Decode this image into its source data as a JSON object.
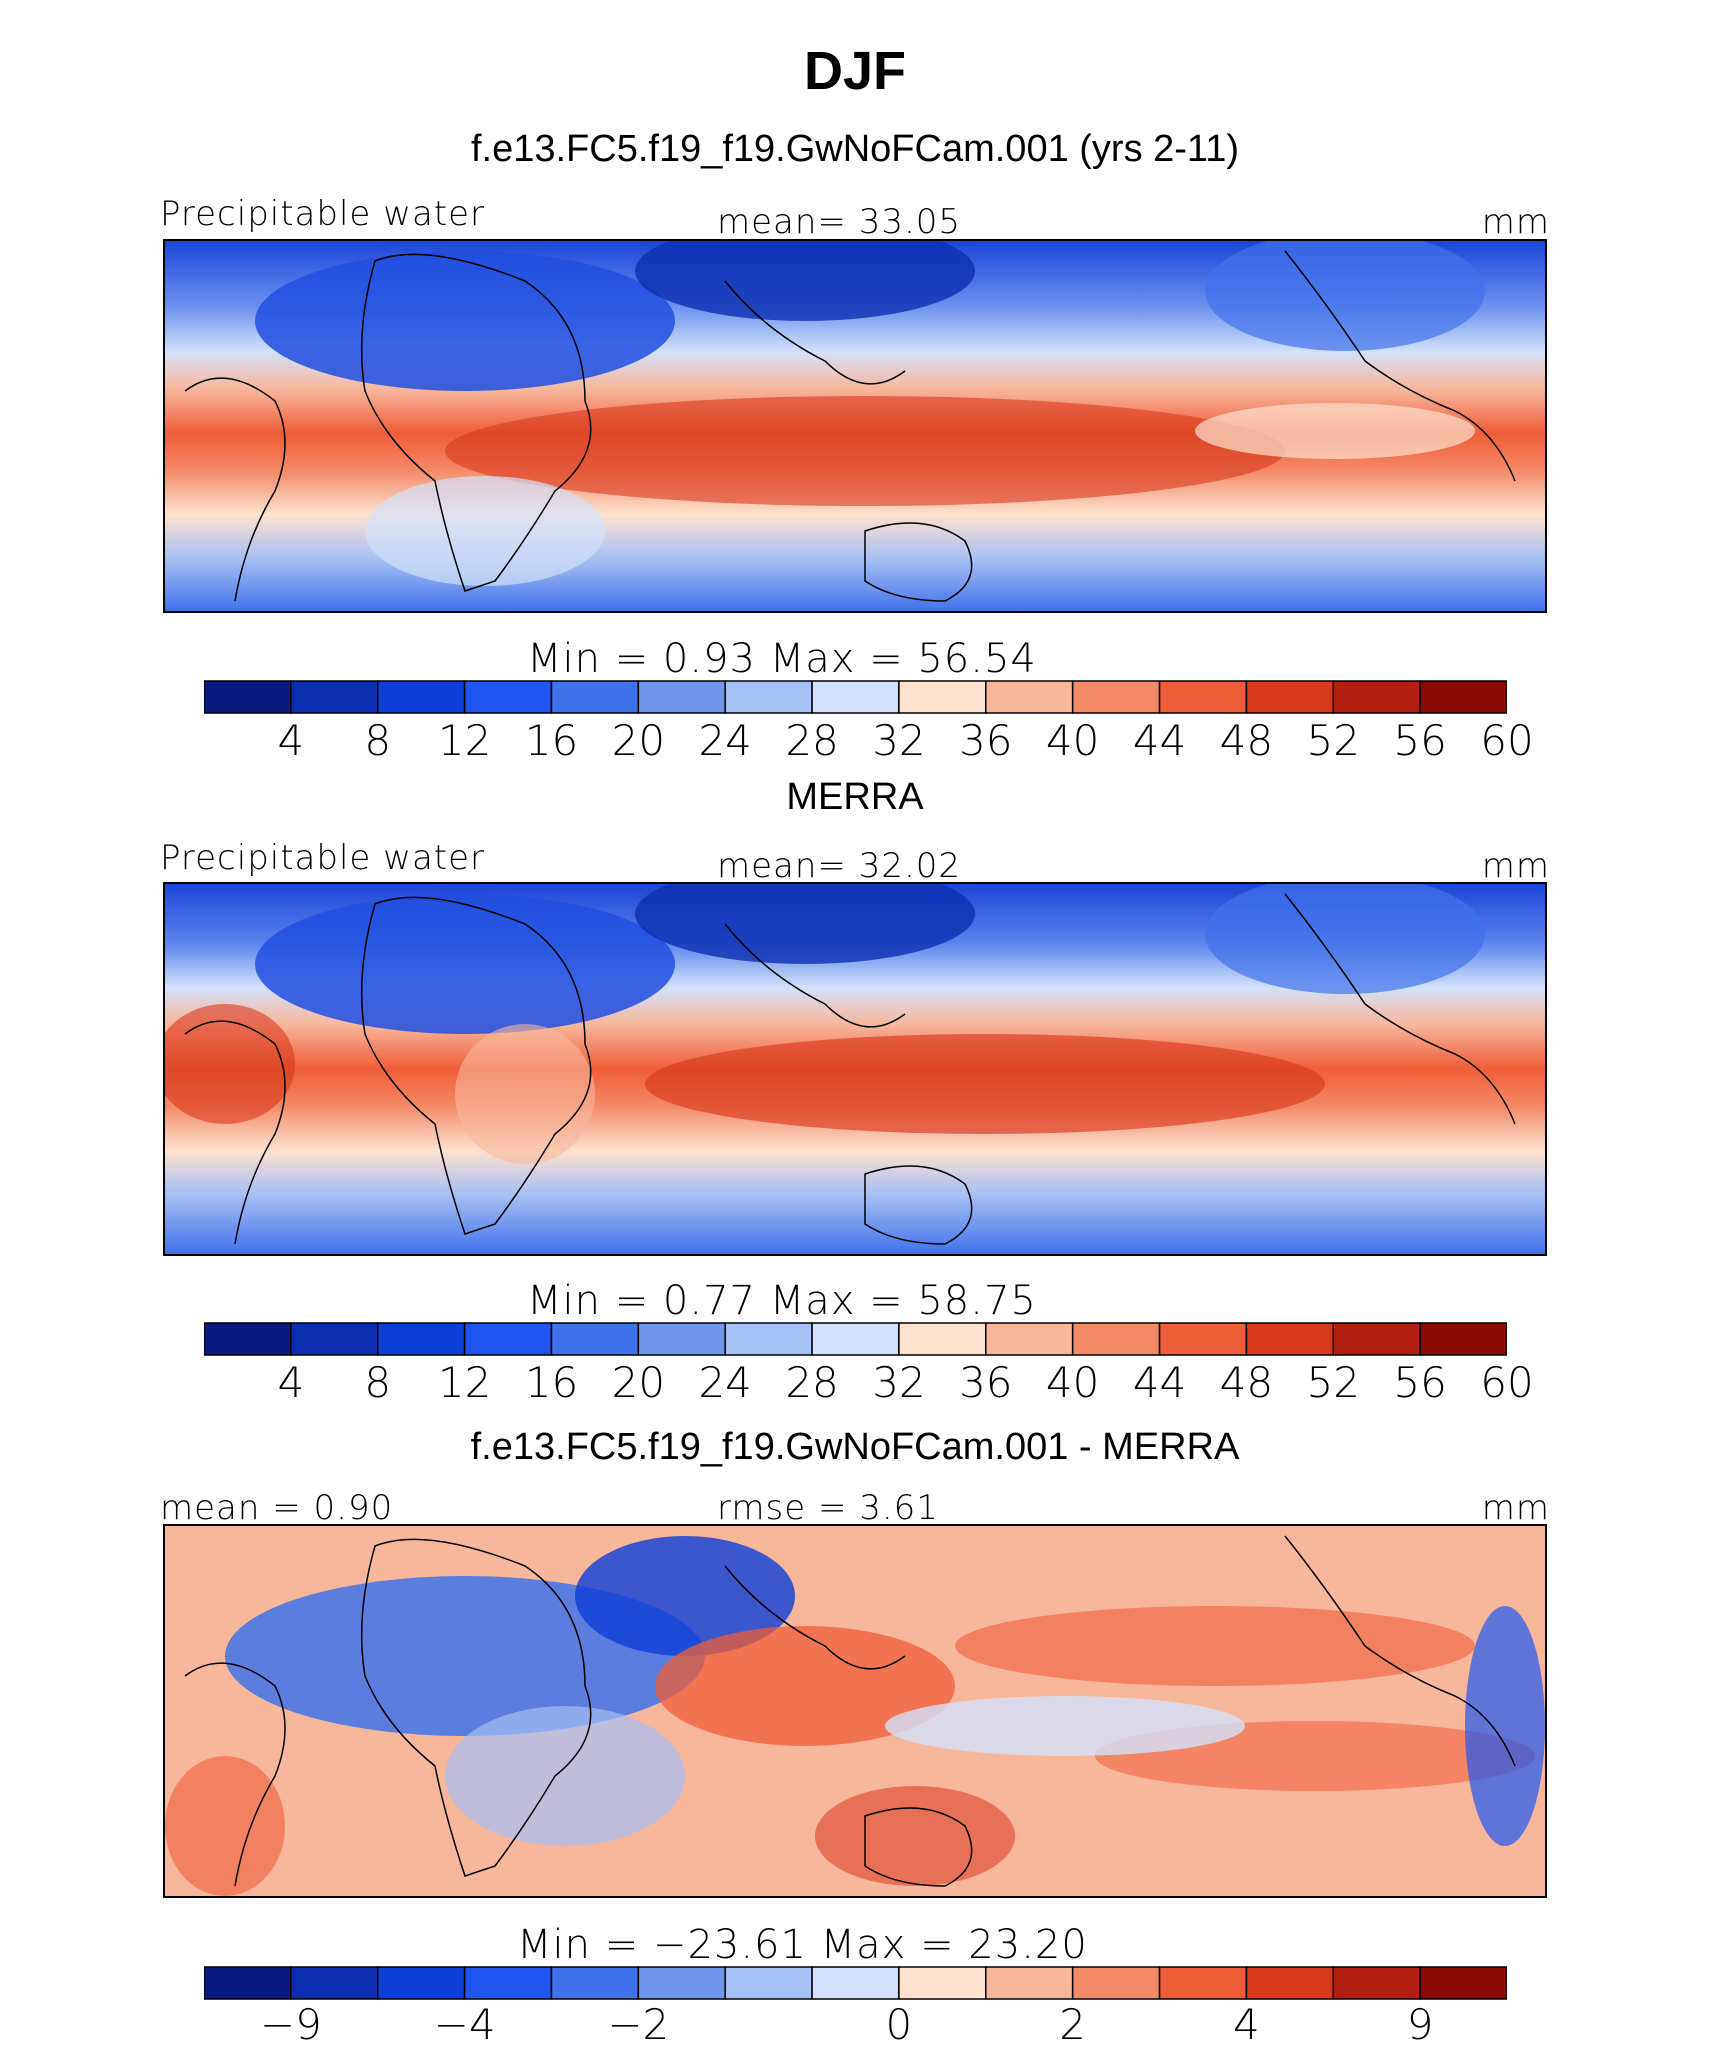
{
  "chart_data": {
    "type": "heatmap",
    "title": "DJF",
    "panels": [
      {
        "id": "model",
        "title": "f.e13.FC5.f19_f19.GwNoFCam.001 (yrs 2-11)",
        "left_label": "Precipitable water",
        "center_label": "mean=   33.05",
        "units": "mm",
        "mean": 33.05,
        "min": 0.93,
        "max": 56.54,
        "minmax_text": "Min  =     0.93  Max  =    56.54",
        "colorbar_ticks": [
          "4",
          "8",
          "12",
          "16",
          "20",
          "24",
          "28",
          "32",
          "36",
          "40",
          "44",
          "48",
          "52",
          "56",
          "60"
        ]
      },
      {
        "id": "obs",
        "title": "MERRA",
        "left_label": "Precipitable water",
        "center_label": "mean=   32.02",
        "units": "mm",
        "mean": 32.02,
        "min": 0.77,
        "max": 58.75,
        "minmax_text": "Min  =     0.77  Max  =    58.75",
        "colorbar_ticks": [
          "4",
          "8",
          "12",
          "16",
          "20",
          "24",
          "28",
          "32",
          "36",
          "40",
          "44",
          "48",
          "52",
          "56",
          "60"
        ]
      },
      {
        "id": "diff",
        "title": "f.e13.FC5.f19_f19.GwNoFCam.001 - MERRA",
        "left_label": "mean =    0.90",
        "center_label": "rmse =     3.61",
        "units": "mm",
        "mean": 0.9,
        "rmse": 3.61,
        "min": -23.61,
        "max": 23.2,
        "minmax_text": "Min  = −23.61  Max  =    23.20",
        "colorbar_ticks": [
          "−9",
          "−4",
          "−2",
          "0",
          "2",
          "4",
          "9"
        ]
      }
    ],
    "colorbar_colors": [
      "#0a1a80",
      "#0b2fb0",
      "#0c3fd8",
      "#1f55f0",
      "#3f73ea",
      "#7096ee",
      "#a6bff4",
      "#d3e1fa",
      "#fde2cf",
      "#f8b79b",
      "#f38a66",
      "#ee5d37",
      "#d8391a",
      "#b21e0f",
      "#8a0a06"
    ]
  }
}
